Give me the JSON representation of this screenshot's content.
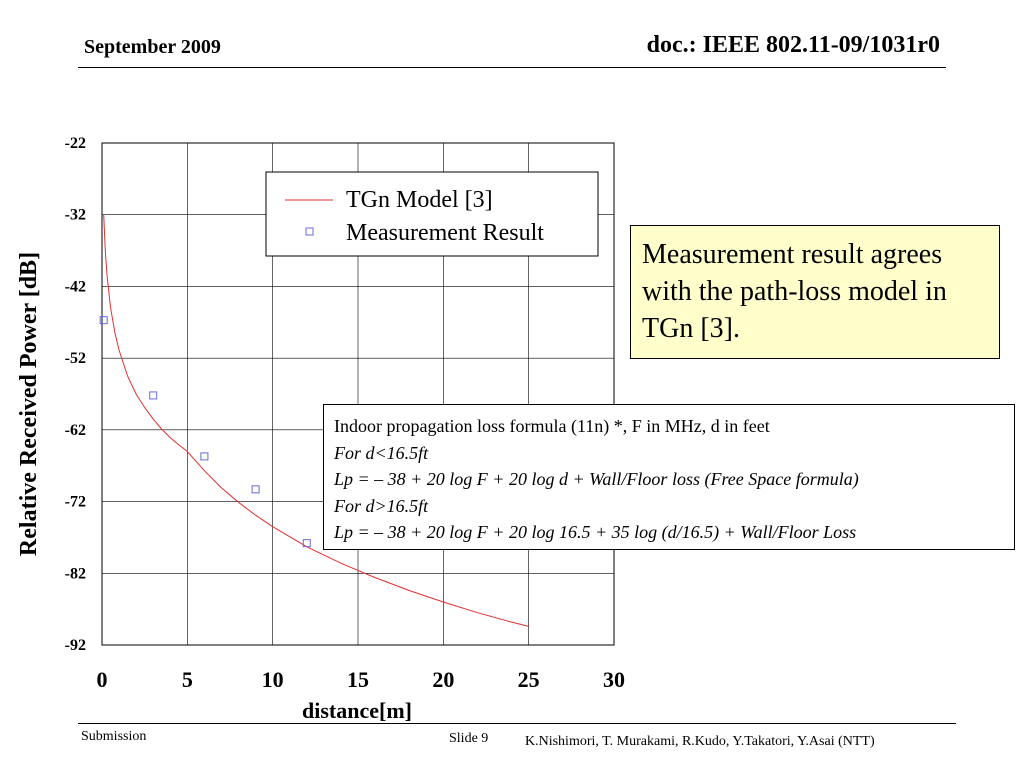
{
  "header": {
    "date": "September 2009",
    "doc_id": "doc.: IEEE 802.11-09/1031r0"
  },
  "chart_data": {
    "type": "scatter",
    "xlabel": "distance[m]",
    "ylabel": "Relative Received Power [dB]",
    "xlim": [
      0,
      30
    ],
    "ylim": [
      -92,
      -22
    ],
    "xticks": [
      0,
      5,
      10,
      15,
      20,
      25,
      30
    ],
    "yticks": [
      -22,
      -32,
      -42,
      -52,
      -62,
      -72,
      -82,
      -92
    ],
    "grid": true,
    "legend_position": "top-right",
    "series": [
      {
        "name": "TGn Model [3]",
        "kind": "line",
        "color": "#e03030",
        "x": [
          0.1,
          0.2,
          0.3,
          0.5,
          0.75,
          1,
          1.5,
          2,
          2.5,
          3,
          3.5,
          4,
          4.5,
          5,
          5.03,
          6,
          7,
          8,
          9,
          10,
          12,
          14,
          16,
          18,
          20,
          22,
          24,
          25
        ],
        "y": [
          -32,
          -37.3,
          -40.5,
          -44.9,
          -48.4,
          -50.9,
          -54.5,
          -57,
          -58.9,
          -60.5,
          -61.9,
          -63.1,
          -64.1,
          -65,
          -65.1,
          -67.7,
          -70.1,
          -72.1,
          -73.9,
          -75.5,
          -78.3,
          -80.6,
          -82.6,
          -84.4,
          -86,
          -87.5,
          -88.8,
          -89.4
        ]
      },
      {
        "name": "Measurement Result",
        "kind": "points",
        "color": "#6a6ae0",
        "x": [
          0.1,
          3,
          6,
          9,
          12
        ],
        "y": [
          -46.7,
          -57.2,
          -65.7,
          -70.3,
          -77.8
        ]
      }
    ]
  },
  "callout": {
    "text": "Measurement result agrees with the path-loss model in TGn [3]."
  },
  "formula_box": {
    "line1": "Indoor propagation loss formula (11n) *, F in MHz, d in feet",
    "line2": "For d<16.5ft",
    "line3": "Lp = – 38 + 20 log F + 20 log d + Wall/Floor loss (Free Space formula)",
    "line4": "For d>16.5ft",
    "line5": "Lp = – 38 + 20 log F + 20 log 16.5 + 35 log (d/16.5) + Wall/Floor Loss"
  },
  "footer": {
    "left": "Submission",
    "slide": "Slide 9",
    "authors": "K.Nishimori, T. Murakami, R.Kudo, Y.Takatori, Y.Asai (NTT)"
  }
}
